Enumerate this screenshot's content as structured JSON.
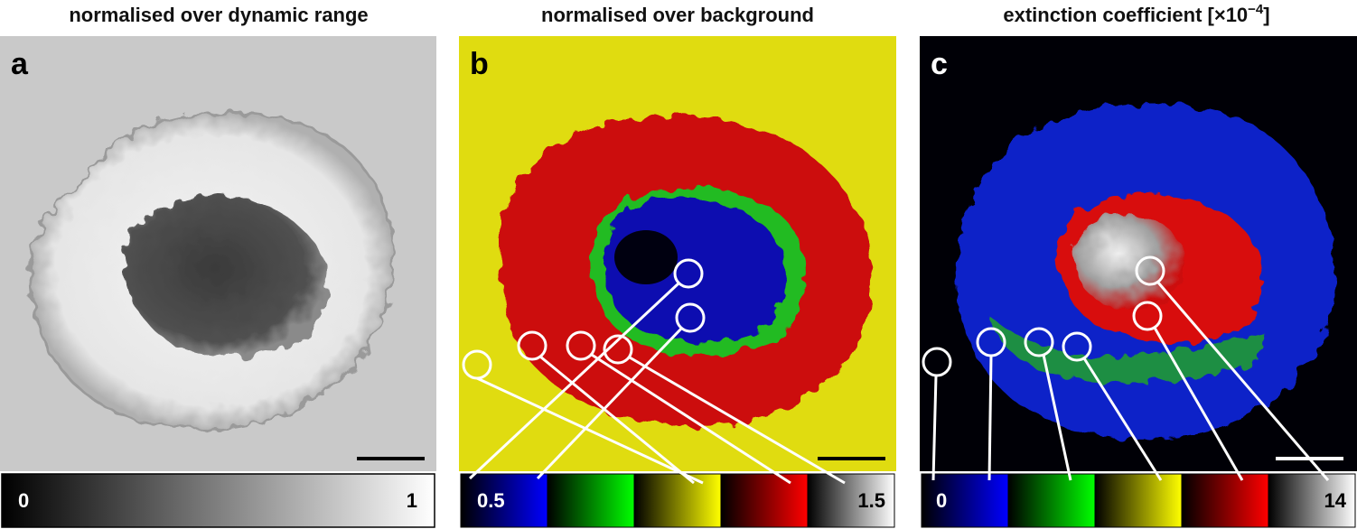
{
  "panels": [
    {
      "title": "normalised over dynamic range",
      "letter": "a",
      "colorbar": {
        "min_label": "0",
        "max_label": "1"
      }
    },
    {
      "title": "normalised over background",
      "letter": "b",
      "colorbar": {
        "min_label": "0.5",
        "max_label": "1.5"
      }
    },
    {
      "title": "extinction coefficient [×10",
      "title_superscript": "−4",
      "title_suffix": "]",
      "letter": "c",
      "colorbar": {
        "min_label": "0",
        "max_label": "14"
      }
    }
  ]
}
